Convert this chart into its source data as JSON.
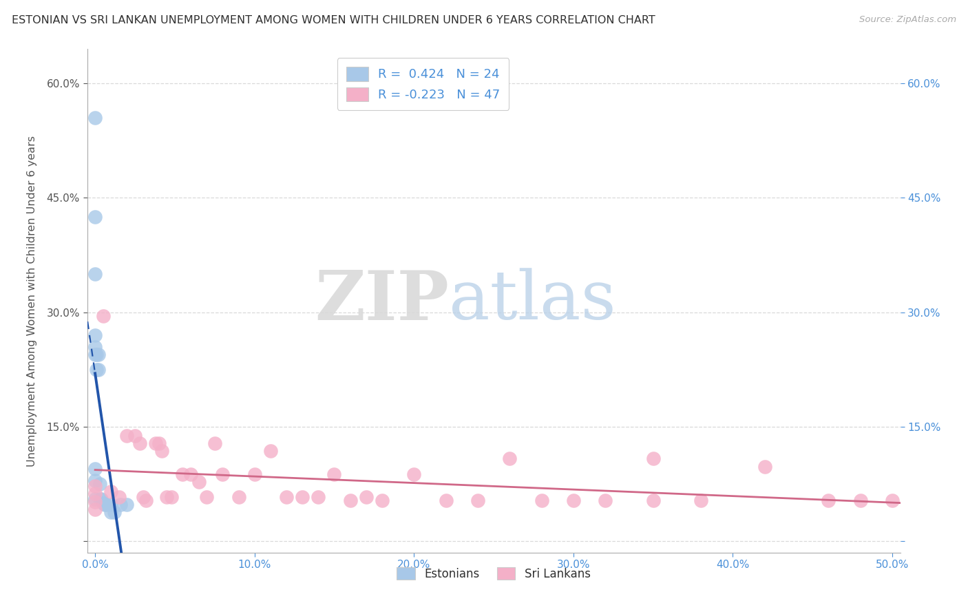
{
  "title": "ESTONIAN VS SRI LANKAN UNEMPLOYMENT AMONG WOMEN WITH CHILDREN UNDER 6 YEARS CORRELATION CHART",
  "source": "Source: ZipAtlas.com",
  "ylabel": "Unemployment Among Women with Children Under 6 years",
  "xlim": [
    -0.005,
    0.505
  ],
  "ylim": [
    -0.015,
    0.645
  ],
  "xticks": [
    0.0,
    0.1,
    0.2,
    0.3,
    0.4,
    0.5
  ],
  "xtick_labels": [
    "0.0%",
    "10.0%",
    "20.0%",
    "30.0%",
    "40.0%",
    "50.0%"
  ],
  "ytick_vals": [
    0.0,
    0.15,
    0.3,
    0.45,
    0.6
  ],
  "ytick_labels_left": [
    "",
    "15.0%",
    "30.0%",
    "45.0%",
    "60.0%"
  ],
  "ytick_labels_right": [
    "",
    "15.0%",
    "30.0%",
    "45.0%",
    "60.0%"
  ],
  "estonian_color": "#a8c8e8",
  "srilankan_color": "#f4b0c8",
  "estonian_line_color": "#2255aa",
  "srilankan_line_color": "#d06888",
  "est_r": "0.424",
  "est_n": "24",
  "sri_r": "-0.223",
  "sri_n": "47",
  "estonian_x": [
    0.0,
    0.0,
    0.0,
    0.0,
    0.0,
    0.0,
    0.0,
    0.0,
    0.0,
    0.001,
    0.001,
    0.002,
    0.002,
    0.003,
    0.003,
    0.004,
    0.005,
    0.006,
    0.007,
    0.01,
    0.01,
    0.012,
    0.016,
    0.02
  ],
  "estonian_y": [
    0.555,
    0.425,
    0.35,
    0.27,
    0.255,
    0.245,
    0.095,
    0.08,
    0.055,
    0.245,
    0.225,
    0.245,
    0.225,
    0.075,
    0.055,
    0.055,
    0.05,
    0.048,
    0.048,
    0.048,
    0.038,
    0.038,
    0.048,
    0.048
  ],
  "srilankan_x": [
    0.0,
    0.0,
    0.0,
    0.0,
    0.005,
    0.01,
    0.015,
    0.02,
    0.025,
    0.028,
    0.03,
    0.032,
    0.038,
    0.04,
    0.042,
    0.045,
    0.048,
    0.055,
    0.06,
    0.065,
    0.07,
    0.075,
    0.08,
    0.09,
    0.1,
    0.11,
    0.12,
    0.13,
    0.14,
    0.15,
    0.16,
    0.17,
    0.18,
    0.2,
    0.22,
    0.24,
    0.26,
    0.28,
    0.3,
    0.32,
    0.35,
    0.38,
    0.42,
    0.46,
    0.48,
    0.5,
    0.35
  ],
  "srilankan_y": [
    0.072,
    0.062,
    0.052,
    0.042,
    0.295,
    0.065,
    0.058,
    0.138,
    0.138,
    0.128,
    0.058,
    0.053,
    0.128,
    0.128,
    0.118,
    0.058,
    0.058,
    0.088,
    0.088,
    0.078,
    0.058,
    0.128,
    0.088,
    0.058,
    0.088,
    0.118,
    0.058,
    0.058,
    0.058,
    0.088,
    0.053,
    0.058,
    0.053,
    0.088,
    0.053,
    0.053,
    0.108,
    0.053,
    0.053,
    0.053,
    0.053,
    0.053,
    0.098,
    0.053,
    0.053,
    0.053,
    0.108
  ],
  "bg_color": "#ffffff",
  "grid_color": "#d5d5d5",
  "title_color": "#303030",
  "axis_label_color": "#555555",
  "left_tick_color": "#555555",
  "right_tick_color": "#4a90d9",
  "x_tick_color": "#4a90d9"
}
